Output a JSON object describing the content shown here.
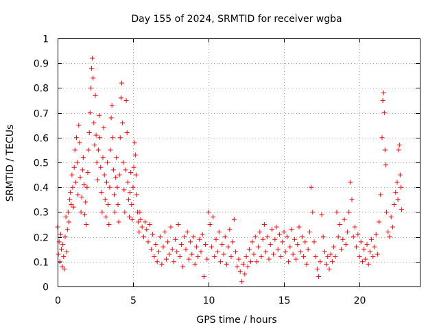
{
  "chart_data": {
    "type": "scatter",
    "title": "Day 155 of 2024, SRMTID for receiver wgba",
    "xlabel": "GPS time / hours",
    "ylabel": "SRMTID / TECUs",
    "xlim": [
      0,
      24
    ],
    "ylim": [
      0,
      1
    ],
    "x_ticks": [
      0,
      5,
      10,
      15,
      20
    ],
    "x_tick_labels": [
      "0",
      "5",
      "10",
      "15",
      "20"
    ],
    "y_ticks": [
      0,
      0.1,
      0.2,
      0.3,
      0.4,
      0.5,
      0.6,
      0.7,
      0.8,
      0.9,
      1
    ],
    "y_tick_labels": [
      "0",
      "0.1",
      "0.2",
      "0.3",
      "0.4",
      "0.5",
      "0.6",
      "0.7",
      "0.8",
      "0.9",
      "1"
    ],
    "grid": true,
    "marker": "plus",
    "color": "#ff0000",
    "series": [
      {
        "name": "SRMTID",
        "points": [
          [
            0.0,
            0.24
          ],
          [
            0.05,
            0.13
          ],
          [
            0.1,
            0.18
          ],
          [
            0.15,
            0.1
          ],
          [
            0.2,
            0.21
          ],
          [
            0.25,
            0.15
          ],
          [
            0.3,
            0.08
          ],
          [
            0.35,
            0.17
          ],
          [
            0.4,
            0.12
          ],
          [
            0.45,
            0.07
          ],
          [
            0.5,
            0.2
          ],
          [
            0.55,
            0.28
          ],
          [
            0.6,
            0.14
          ],
          [
            0.65,
            0.23
          ],
          [
            0.7,
            0.3
          ],
          [
            0.75,
            0.26
          ],
          [
            0.8,
            0.35
          ],
          [
            0.85,
            0.38
          ],
          [
            0.9,
            0.33
          ],
          [
            0.95,
            0.45
          ],
          [
            1.0,
            0.4
          ],
          [
            1.05,
            0.32
          ],
          [
            1.1,
            0.48
          ],
          [
            1.15,
            0.55
          ],
          [
            1.2,
            0.42
          ],
          [
            1.25,
            0.6
          ],
          [
            1.3,
            0.5
          ],
          [
            1.35,
            0.37
          ],
          [
            1.4,
            0.65
          ],
          [
            1.45,
            0.58
          ],
          [
            1.5,
            0.44
          ],
          [
            1.55,
            0.3
          ],
          [
            1.6,
            0.36
          ],
          [
            1.65,
            0.47
          ],
          [
            1.7,
            0.52
          ],
          [
            1.75,
            0.41
          ],
          [
            1.8,
            0.29
          ],
          [
            1.85,
            0.34
          ],
          [
            1.9,
            0.25
          ],
          [
            1.95,
            0.4
          ],
          [
            2.0,
            0.46
          ],
          [
            2.05,
            0.55
          ],
          [
            2.1,
            0.62
          ],
          [
            2.15,
            0.7
          ],
          [
            2.2,
            0.8
          ],
          [
            2.25,
            0.88
          ],
          [
            2.3,
            0.92
          ],
          [
            2.35,
            0.84
          ],
          [
            2.4,
            0.66
          ],
          [
            2.45,
            0.57
          ],
          [
            2.5,
            0.77
          ],
          [
            2.55,
            0.61
          ],
          [
            2.6,
            0.5
          ],
          [
            2.65,
            0.43
          ],
          [
            2.7,
            0.55
          ],
          [
            2.75,
            0.69
          ],
          [
            2.8,
            0.6
          ],
          [
            2.85,
            0.48
          ],
          [
            2.9,
            0.38
          ],
          [
            2.95,
            0.3
          ],
          [
            3.0,
            0.52
          ],
          [
            3.05,
            0.64
          ],
          [
            3.1,
            0.45
          ],
          [
            3.15,
            0.35
          ],
          [
            3.2,
            0.28
          ],
          [
            3.25,
            0.42
          ],
          [
            3.3,
            0.5
          ],
          [
            3.35,
            0.33
          ],
          [
            3.4,
            0.25
          ],
          [
            3.45,
            0.4
          ],
          [
            3.5,
            0.55
          ],
          [
            3.55,
            0.68
          ],
          [
            3.6,
            0.73
          ],
          [
            3.65,
            0.6
          ],
          [
            3.7,
            0.47
          ],
          [
            3.75,
            0.37
          ],
          [
            3.8,
            0.3
          ],
          [
            3.85,
            0.44
          ],
          [
            3.9,
            0.52
          ],
          [
            3.95,
            0.4
          ],
          [
            4.0,
            0.33
          ],
          [
            4.05,
            0.26
          ],
          [
            4.1,
            0.45
          ],
          [
            4.15,
            0.6
          ],
          [
            4.2,
            0.76
          ],
          [
            4.25,
            0.82
          ],
          [
            4.3,
            0.66
          ],
          [
            4.35,
            0.5
          ],
          [
            4.4,
            0.39
          ],
          [
            4.45,
            0.3
          ],
          [
            4.5,
            0.47
          ],
          [
            4.55,
            0.75
          ],
          [
            4.6,
            0.62
          ],
          [
            4.65,
            0.42
          ],
          [
            4.7,
            0.35
          ],
          [
            4.75,
            0.28
          ],
          [
            4.8,
            0.38
          ],
          [
            4.85,
            0.46
          ],
          [
            4.9,
            0.33
          ],
          [
            4.95,
            0.27
          ],
          [
            5.0,
            0.4
          ],
          [
            5.05,
            0.48
          ],
          [
            5.1,
            0.58
          ],
          [
            5.15,
            0.53
          ],
          [
            5.2,
            0.45
          ],
          [
            5.25,
            0.37
          ],
          [
            5.3,
            0.3
          ],
          [
            5.35,
            0.26
          ],
          [
            5.4,
            0.22
          ],
          [
            5.45,
            0.3
          ],
          [
            5.5,
            0.27
          ],
          [
            5.6,
            0.24
          ],
          [
            5.7,
            0.2
          ],
          [
            5.8,
            0.26
          ],
          [
            5.9,
            0.23
          ],
          [
            6.0,
            0.18
          ],
          [
            6.1,
            0.25
          ],
          [
            6.2,
            0.15
          ],
          [
            6.3,
            0.21
          ],
          [
            6.4,
            0.12
          ],
          [
            6.5,
            0.17
          ],
          [
            6.6,
            0.1
          ],
          [
            6.7,
            0.14
          ],
          [
            6.8,
            0.2
          ],
          [
            6.9,
            0.09
          ],
          [
            7.0,
            0.16
          ],
          [
            7.1,
            0.22
          ],
          [
            7.2,
            0.11
          ],
          [
            7.3,
            0.18
          ],
          [
            7.4,
            0.13
          ],
          [
            7.5,
            0.24
          ],
          [
            7.6,
            0.15
          ],
          [
            7.7,
            0.1
          ],
          [
            7.8,
            0.19
          ],
          [
            7.9,
            0.14
          ],
          [
            8.0,
            0.25
          ],
          [
            8.1,
            0.12
          ],
          [
            8.2,
            0.17
          ],
          [
            8.3,
            0.08
          ],
          [
            8.4,
            0.2
          ],
          [
            8.5,
            0.15
          ],
          [
            8.6,
            0.22
          ],
          [
            8.7,
            0.11
          ],
          [
            8.8,
            0.18
          ],
          [
            8.9,
            0.13
          ],
          [
            9.0,
            0.2
          ],
          [
            9.1,
            0.09
          ],
          [
            9.2,
            0.16
          ],
          [
            9.3,
            0.12
          ],
          [
            9.4,
            0.19
          ],
          [
            9.5,
            0.14
          ],
          [
            9.6,
            0.21
          ],
          [
            9.7,
            0.04
          ],
          [
            9.8,
            0.17
          ],
          [
            9.9,
            0.11
          ],
          [
            10.0,
            0.3
          ],
          [
            10.1,
            0.25
          ],
          [
            10.2,
            0.16
          ],
          [
            10.3,
            0.28
          ],
          [
            10.4,
            0.12
          ],
          [
            10.5,
            0.19
          ],
          [
            10.6,
            0.14
          ],
          [
            10.7,
            0.22
          ],
          [
            10.8,
            0.1
          ],
          [
            10.9,
            0.17
          ],
          [
            11.0,
            0.13
          ],
          [
            11.1,
            0.2
          ],
          [
            11.2,
            0.09
          ],
          [
            11.3,
            0.16
          ],
          [
            11.4,
            0.23
          ],
          [
            11.5,
            0.12
          ],
          [
            11.6,
            0.18
          ],
          [
            11.7,
            0.27
          ],
          [
            11.8,
            0.14
          ],
          [
            11.9,
            0.08
          ],
          [
            12.0,
            0.11
          ],
          [
            12.1,
            0.06
          ],
          [
            12.2,
            0.02
          ],
          [
            12.3,
            0.09
          ],
          [
            12.4,
            0.05
          ],
          [
            12.5,
            0.12
          ],
          [
            12.6,
            0.08
          ],
          [
            12.7,
            0.15
          ],
          [
            12.8,
            0.1
          ],
          [
            12.9,
            0.18
          ],
          [
            13.0,
            0.13
          ],
          [
            13.1,
            0.2
          ],
          [
            13.2,
            0.1
          ],
          [
            13.3,
            0.16
          ],
          [
            13.4,
            0.22
          ],
          [
            13.5,
            0.12
          ],
          [
            13.6,
            0.19
          ],
          [
            13.7,
            0.25
          ],
          [
            13.8,
            0.14
          ],
          [
            13.9,
            0.2
          ],
          [
            14.0,
            0.11
          ],
          [
            14.1,
            0.17
          ],
          [
            14.2,
            0.23
          ],
          [
            14.3,
            0.13
          ],
          [
            14.4,
            0.19
          ],
          [
            14.5,
            0.24
          ],
          [
            14.6,
            0.15
          ],
          [
            14.7,
            0.21
          ],
          [
            14.8,
            0.12
          ],
          [
            14.9,
            0.18
          ],
          [
            15.0,
            0.22
          ],
          [
            15.1,
            0.14
          ],
          [
            15.2,
            0.2
          ],
          [
            15.3,
            0.1
          ],
          [
            15.4,
            0.16
          ],
          [
            15.5,
            0.23
          ],
          [
            15.6,
            0.13
          ],
          [
            15.7,
            0.19
          ],
          [
            15.8,
            0.11
          ],
          [
            15.9,
            0.17
          ],
          [
            16.0,
            0.24
          ],
          [
            16.1,
            0.14
          ],
          [
            16.2,
            0.2
          ],
          [
            16.3,
            0.12
          ],
          [
            16.4,
            0.18
          ],
          [
            16.5,
            0.09
          ],
          [
            16.6,
            0.15
          ],
          [
            16.7,
            0.22
          ],
          [
            16.8,
            0.4
          ],
          [
            16.9,
            0.3
          ],
          [
            17.0,
            0.18
          ],
          [
            17.1,
            0.12
          ],
          [
            17.2,
            0.07
          ],
          [
            17.3,
            0.04
          ],
          [
            17.4,
            0.1
          ],
          [
            17.5,
            0.29
          ],
          [
            17.6,
            0.2
          ],
          [
            17.7,
            0.14
          ],
          [
            17.8,
            0.09
          ],
          [
            17.9,
            0.12
          ],
          [
            18.0,
            0.07
          ],
          [
            18.1,
            0.13
          ],
          [
            18.2,
            0.1
          ],
          [
            18.3,
            0.16
          ],
          [
            18.4,
            0.12
          ],
          [
            18.5,
            0.3
          ],
          [
            18.6,
            0.2
          ],
          [
            18.7,
            0.25
          ],
          [
            18.8,
            0.15
          ],
          [
            18.9,
            0.19
          ],
          [
            19.0,
            0.27
          ],
          [
            19.1,
            0.17
          ],
          [
            19.2,
            0.22
          ],
          [
            19.3,
            0.3
          ],
          [
            19.4,
            0.42
          ],
          [
            19.5,
            0.35
          ],
          [
            19.6,
            0.2
          ],
          [
            19.7,
            0.24
          ],
          [
            19.8,
            0.16
          ],
          [
            19.9,
            0.21
          ],
          [
            20.0,
            0.12
          ],
          [
            20.1,
            0.18
          ],
          [
            20.2,
            0.1
          ],
          [
            20.3,
            0.15
          ],
          [
            20.4,
            0.11
          ],
          [
            20.5,
            0.17
          ],
          [
            20.6,
            0.09
          ],
          [
            20.7,
            0.14
          ],
          [
            20.8,
            0.19
          ],
          [
            20.9,
            0.12
          ],
          [
            21.0,
            0.16
          ],
          [
            21.1,
            0.21
          ],
          [
            21.2,
            0.13
          ],
          [
            21.3,
            0.26
          ],
          [
            21.4,
            0.37
          ],
          [
            21.5,
            0.6
          ],
          [
            21.55,
            0.75
          ],
          [
            21.6,
            0.78
          ],
          [
            21.65,
            0.7
          ],
          [
            21.7,
            0.55
          ],
          [
            21.75,
            0.49
          ],
          [
            21.8,
            0.3
          ],
          [
            21.9,
            0.22
          ],
          [
            22.0,
            0.2
          ],
          [
            22.1,
            0.28
          ],
          [
            22.2,
            0.24
          ],
          [
            22.3,
            0.33
          ],
          [
            22.4,
            0.38
          ],
          [
            22.5,
            0.42
          ],
          [
            22.55,
            0.35
          ],
          [
            22.6,
            0.55
          ],
          [
            22.65,
            0.57
          ],
          [
            22.7,
            0.45
          ],
          [
            22.75,
            0.4
          ],
          [
            22.8,
            0.31
          ]
        ]
      }
    ]
  }
}
